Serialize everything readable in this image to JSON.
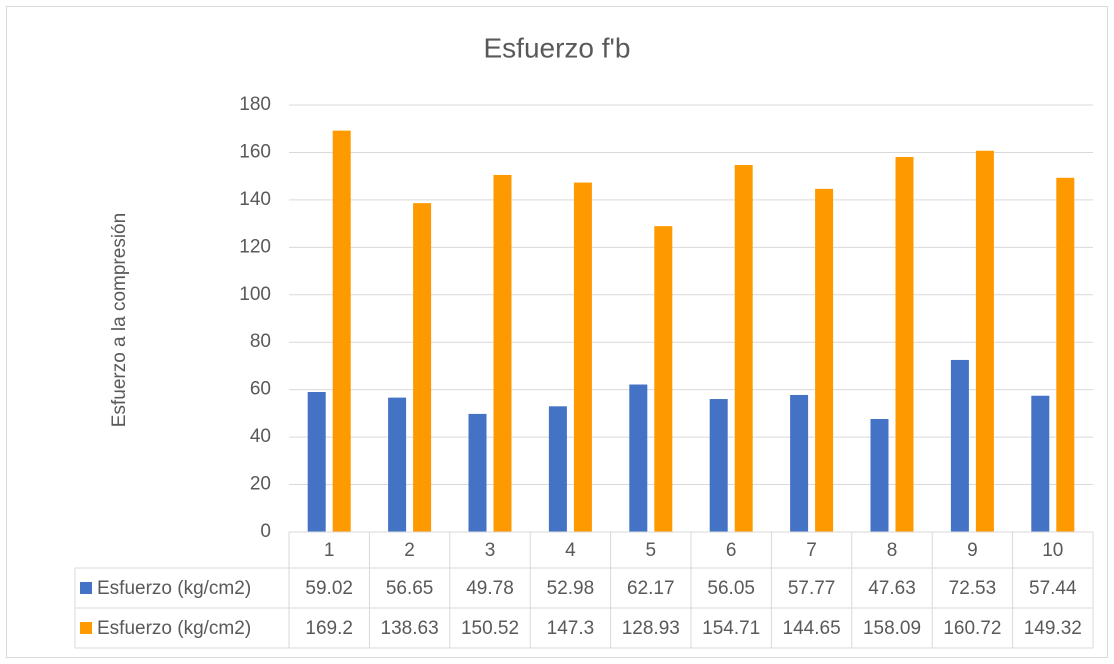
{
  "chart_data": {
    "type": "bar",
    "title": "Esfuerzo f'b",
    "y_label": "Esfuerzo a la compresión",
    "categories": [
      "1",
      "2",
      "3",
      "4",
      "5",
      "6",
      "7",
      "8",
      "9",
      "10"
    ],
    "series": [
      {
        "name": "Esfuerzo (kg/cm2)",
        "color": "#4472c4",
        "values": [
          59.02,
          56.65,
          49.78,
          52.98,
          62.17,
          56.05,
          57.77,
          47.63,
          72.53,
          57.44
        ]
      },
      {
        "name": "Esfuerzo (kg/cm2)",
        "color": "#ff9900",
        "values": [
          169.2,
          138.63,
          150.52,
          147.3,
          128.93,
          154.71,
          144.65,
          158.09,
          160.72,
          149.32
        ]
      }
    ],
    "ylim": [
      0,
      180
    ],
    "yticks": [
      0,
      20,
      40,
      60,
      80,
      100,
      120,
      140,
      160,
      180
    ],
    "grid": true,
    "data_table": true
  }
}
